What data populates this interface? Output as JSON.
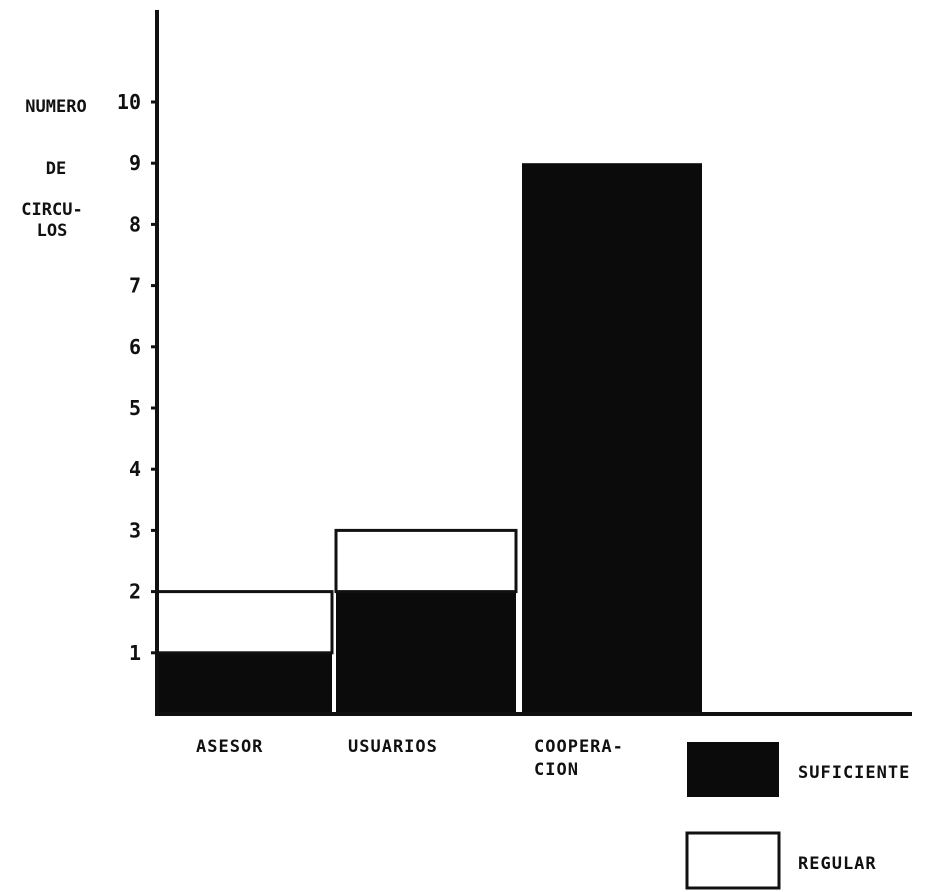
{
  "chart_data": {
    "type": "bar",
    "stacked": true,
    "ylabel": [
      "NUMERO",
      "DE",
      "CIRCU-",
      "LOS"
    ],
    "categories": [
      [
        "ASESOR"
      ],
      [
        "USUARIOS"
      ],
      [
        "COOPERA-",
        "CION"
      ]
    ],
    "series": [
      {
        "name": "SUFICIENTE",
        "values": [
          1,
          2,
          9
        ],
        "color": "#0b0b0b"
      },
      {
        "name": "REGULAR",
        "values": [
          1,
          1,
          0
        ],
        "color": "#ffffff"
      }
    ],
    "ylim": [
      0,
      10
    ],
    "yticks": [
      "1",
      "2",
      "3",
      "4",
      "5",
      "6",
      "7",
      "8",
      "9",
      "10"
    ],
    "legend_position": "bottom-right",
    "grid": false
  }
}
